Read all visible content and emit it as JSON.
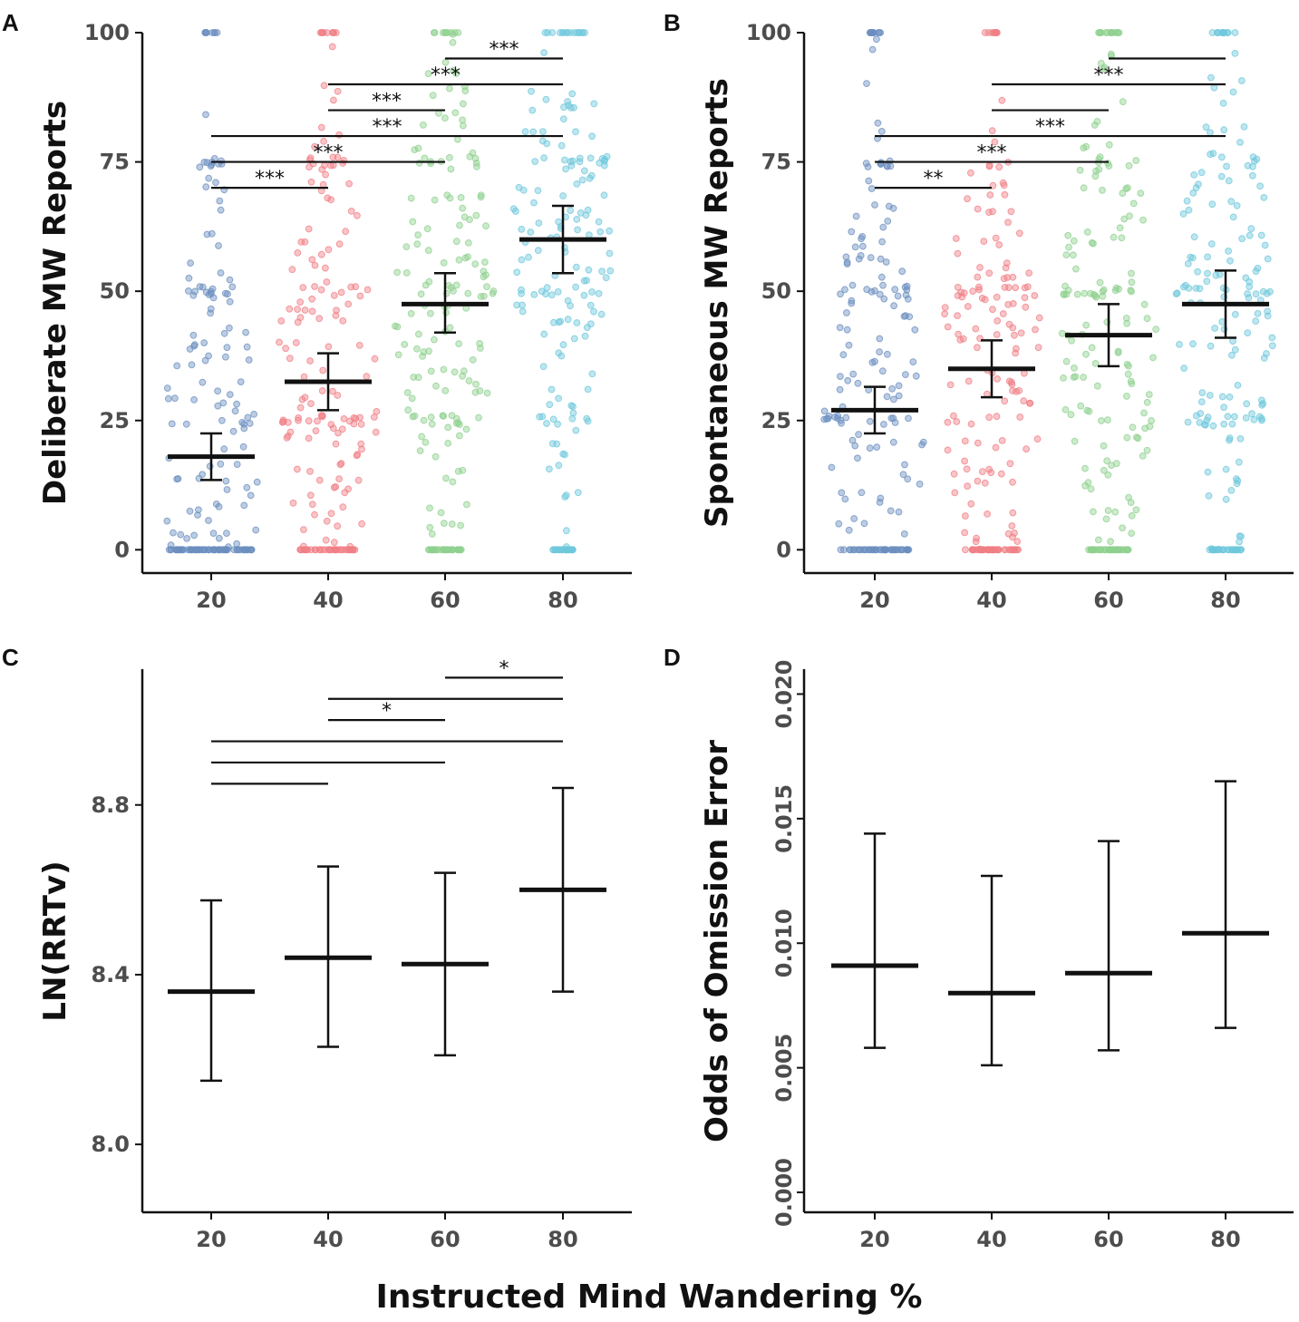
{
  "figure": {
    "x_label": "Instructed Mind Wandering %"
  },
  "chart_data": [
    {
      "panel": "A",
      "type": "scatter",
      "subtype": "beeswarm with mean and 95% CI",
      "ylabel": "Deliberate MW Reports",
      "categories": [
        "20",
        "40",
        "60",
        "80"
      ],
      "y_ticks": [
        "0",
        "25",
        "50",
        "75",
        "100"
      ],
      "ylim": [
        -4.5,
        100
      ],
      "point_colors": [
        "#6b8fbf",
        "#f07f85",
        "#8fd08f",
        "#6fc8dc"
      ],
      "means": [
        18,
        32.5,
        47.5,
        60
      ],
      "ci_low": [
        13.5,
        27,
        42,
        53.5
      ],
      "ci_high": [
        22.5,
        38,
        53.5,
        66.5
      ],
      "comparisons": [
        {
          "from": "20",
          "to": "40",
          "y": 70,
          "label": "***"
        },
        {
          "from": "20",
          "to": "60",
          "y": 75,
          "label": "***"
        },
        {
          "from": "20",
          "to": "80",
          "y": 80,
          "label": "***"
        },
        {
          "from": "40",
          "to": "60",
          "y": 85,
          "label": "***"
        },
        {
          "from": "40",
          "to": "80",
          "y": 90,
          "label": "***"
        },
        {
          "from": "60",
          "to": "80",
          "y": 95,
          "label": "***"
        }
      ]
    },
    {
      "panel": "B",
      "type": "scatter",
      "subtype": "beeswarm with mean and 95% CI",
      "ylabel": "Spontaneous MW Reports",
      "categories": [
        "20",
        "40",
        "60",
        "80"
      ],
      "y_ticks": [
        "0",
        "25",
        "50",
        "75",
        "100"
      ],
      "ylim": [
        -4.5,
        100
      ],
      "point_colors": [
        "#6b8fbf",
        "#f07f85",
        "#8fd08f",
        "#6fc8dc"
      ],
      "means": [
        27,
        35,
        41.5,
        47.5
      ],
      "ci_low": [
        22.5,
        29.5,
        35.5,
        41
      ],
      "ci_high": [
        31.5,
        40.5,
        47.5,
        54
      ],
      "comparisons": [
        {
          "from": "20",
          "to": "40",
          "y": 70,
          "label": "**"
        },
        {
          "from": "20",
          "to": "60",
          "y": 75,
          "label": "***"
        },
        {
          "from": "20",
          "to": "80",
          "y": 80,
          "label": "***"
        },
        {
          "from": "40",
          "to": "60",
          "y": 85,
          "label": ""
        },
        {
          "from": "40",
          "to": "80",
          "y": 90,
          "label": "***"
        },
        {
          "from": "60",
          "to": "80",
          "y": 95,
          "label": ""
        }
      ]
    },
    {
      "panel": "C",
      "type": "errorbar",
      "ylabel": "LN(RRTv)",
      "categories": [
        "20",
        "40",
        "60",
        "80"
      ],
      "y_ticks": [
        "8.0",
        "8.4",
        "8.8"
      ],
      "ylim": [
        7.84,
        9.12
      ],
      "means": [
        8.36,
        8.44,
        8.425,
        8.6
      ],
      "ci_low": [
        8.15,
        8.23,
        8.21,
        8.36
      ],
      "ci_high": [
        8.575,
        8.655,
        8.64,
        8.84
      ],
      "comparisons": [
        {
          "from": "20",
          "to": "40",
          "y": 8.85,
          "label": ""
        },
        {
          "from": "20",
          "to": "60",
          "y": 8.9,
          "label": ""
        },
        {
          "from": "20",
          "to": "80",
          "y": 8.95,
          "label": ""
        },
        {
          "from": "40",
          "to": "60",
          "y": 9.0,
          "label": "*"
        },
        {
          "from": "40",
          "to": "80",
          "y": 9.05,
          "label": ""
        },
        {
          "from": "60",
          "to": "80",
          "y": 9.1,
          "label": "*"
        }
      ]
    },
    {
      "panel": "D",
      "type": "errorbar",
      "ylabel": "Odds of Omission Error",
      "categories": [
        "20",
        "40",
        "60",
        "80"
      ],
      "y_ticks": [
        "0.000",
        "0.005",
        "0.010",
        "0.015",
        "0.020"
      ],
      "ylim": [
        -0.0008,
        0.021
      ],
      "means": [
        0.0091,
        0.008,
        0.0088,
        0.0104
      ],
      "ci_low": [
        0.0058,
        0.0051,
        0.0057,
        0.0066
      ],
      "ci_high": [
        0.0144,
        0.0127,
        0.0141,
        0.0165
      ],
      "comparisons": []
    }
  ]
}
